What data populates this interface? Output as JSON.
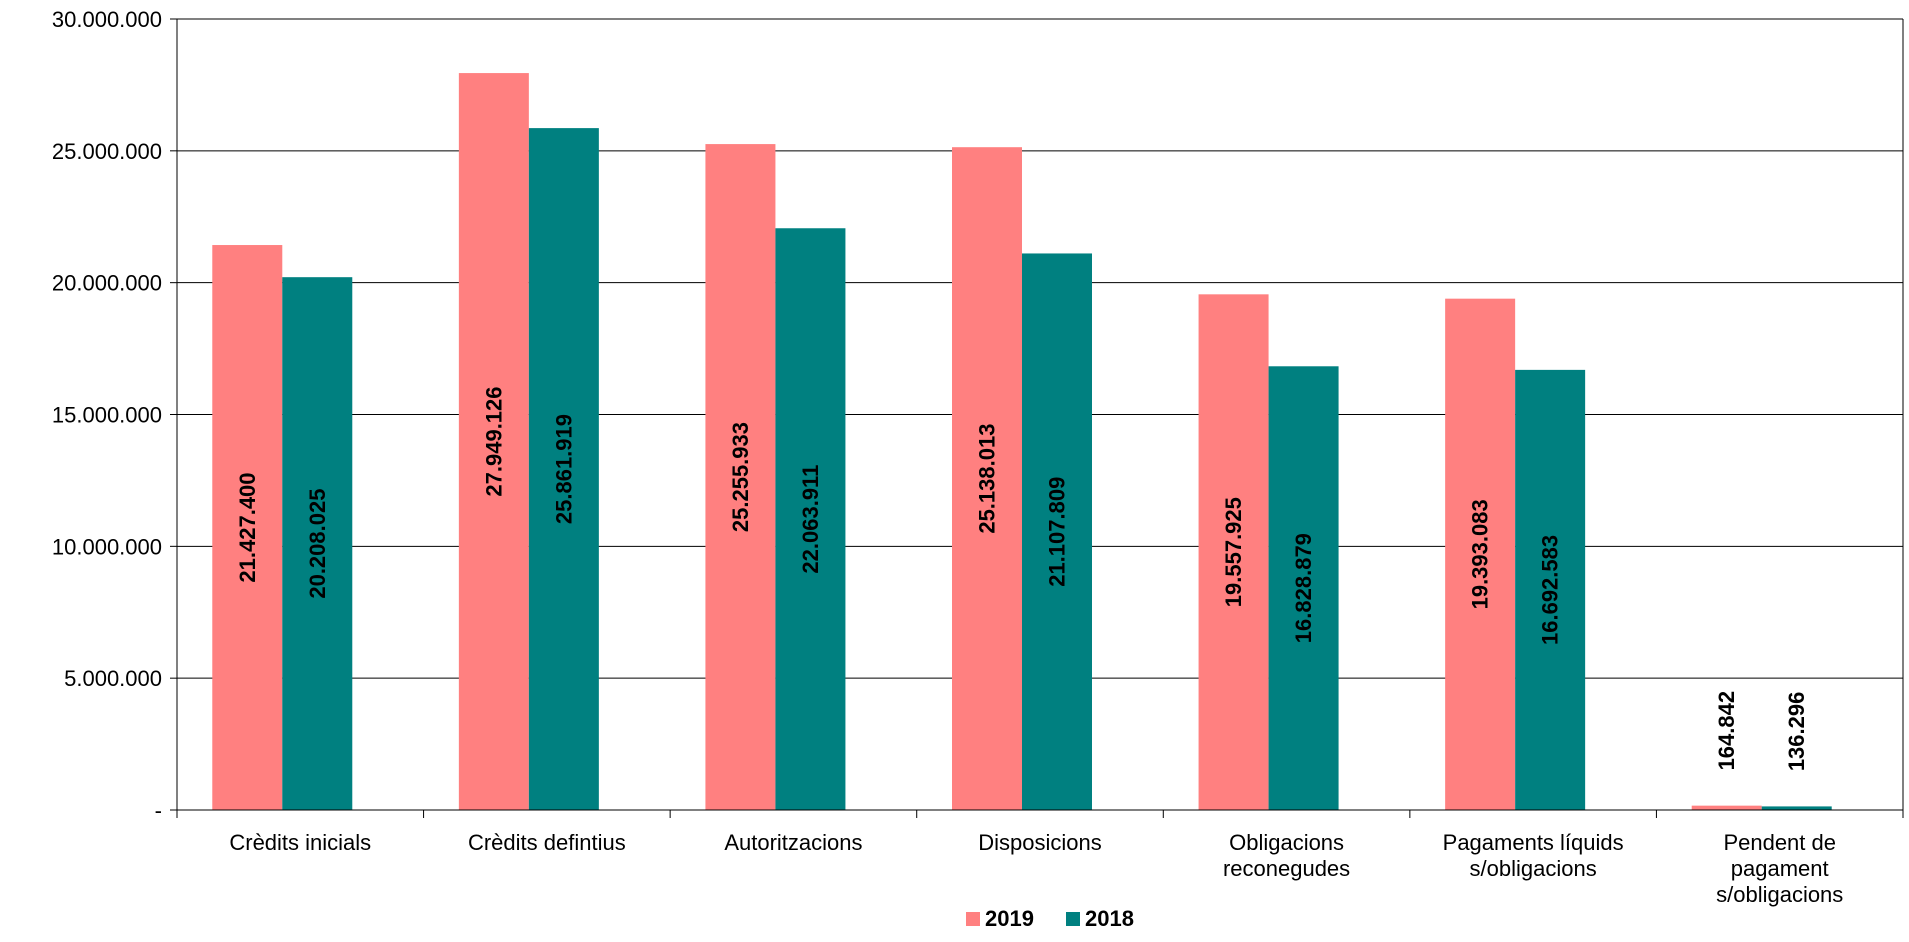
{
  "chart_data": {
    "type": "bar",
    "categories": [
      [
        "Crèdits inicials"
      ],
      [
        "Crèdits defintius"
      ],
      [
        "Autoritzacions"
      ],
      [
        "Disposicions"
      ],
      [
        "Obligacions",
        "reconegudes"
      ],
      [
        "Pagaments líquids",
        "s/obligacions"
      ],
      [
        "Pendent de",
        "pagament",
        "s/obligacions"
      ]
    ],
    "series": [
      {
        "name": "2019",
        "color": "#FF8080",
        "values": [
          21427400,
          27949126,
          25255933,
          25138013,
          19557925,
          19393083,
          164842
        ],
        "labels": [
          "21.427.400",
          "27.949.126",
          "25.255.933",
          "25.138.013",
          "19.557.925",
          "19.393.083",
          "164.842"
        ]
      },
      {
        "name": "2018",
        "color": "#008080",
        "values": [
          20208025,
          25861919,
          22063911,
          21107809,
          16828879,
          16692583,
          136296
        ],
        "labels": [
          "20.208.025",
          "25.861.919",
          "22.063.911",
          "21.107.809",
          "16.828.879",
          "16.692.583",
          "136.296"
        ]
      }
    ],
    "yticks": [
      0,
      5000000,
      10000000,
      15000000,
      20000000,
      25000000,
      30000000
    ],
    "ytick_labels": [
      "-",
      "5.000.000",
      "10.000.000",
      "15.000.000",
      "20.000.000",
      "25.000.000",
      "30.000.000"
    ],
    "ylim": [
      0,
      30000000
    ],
    "grid": true,
    "legend": "bottom-center",
    "title": "",
    "xlabel": "",
    "ylabel": ""
  }
}
